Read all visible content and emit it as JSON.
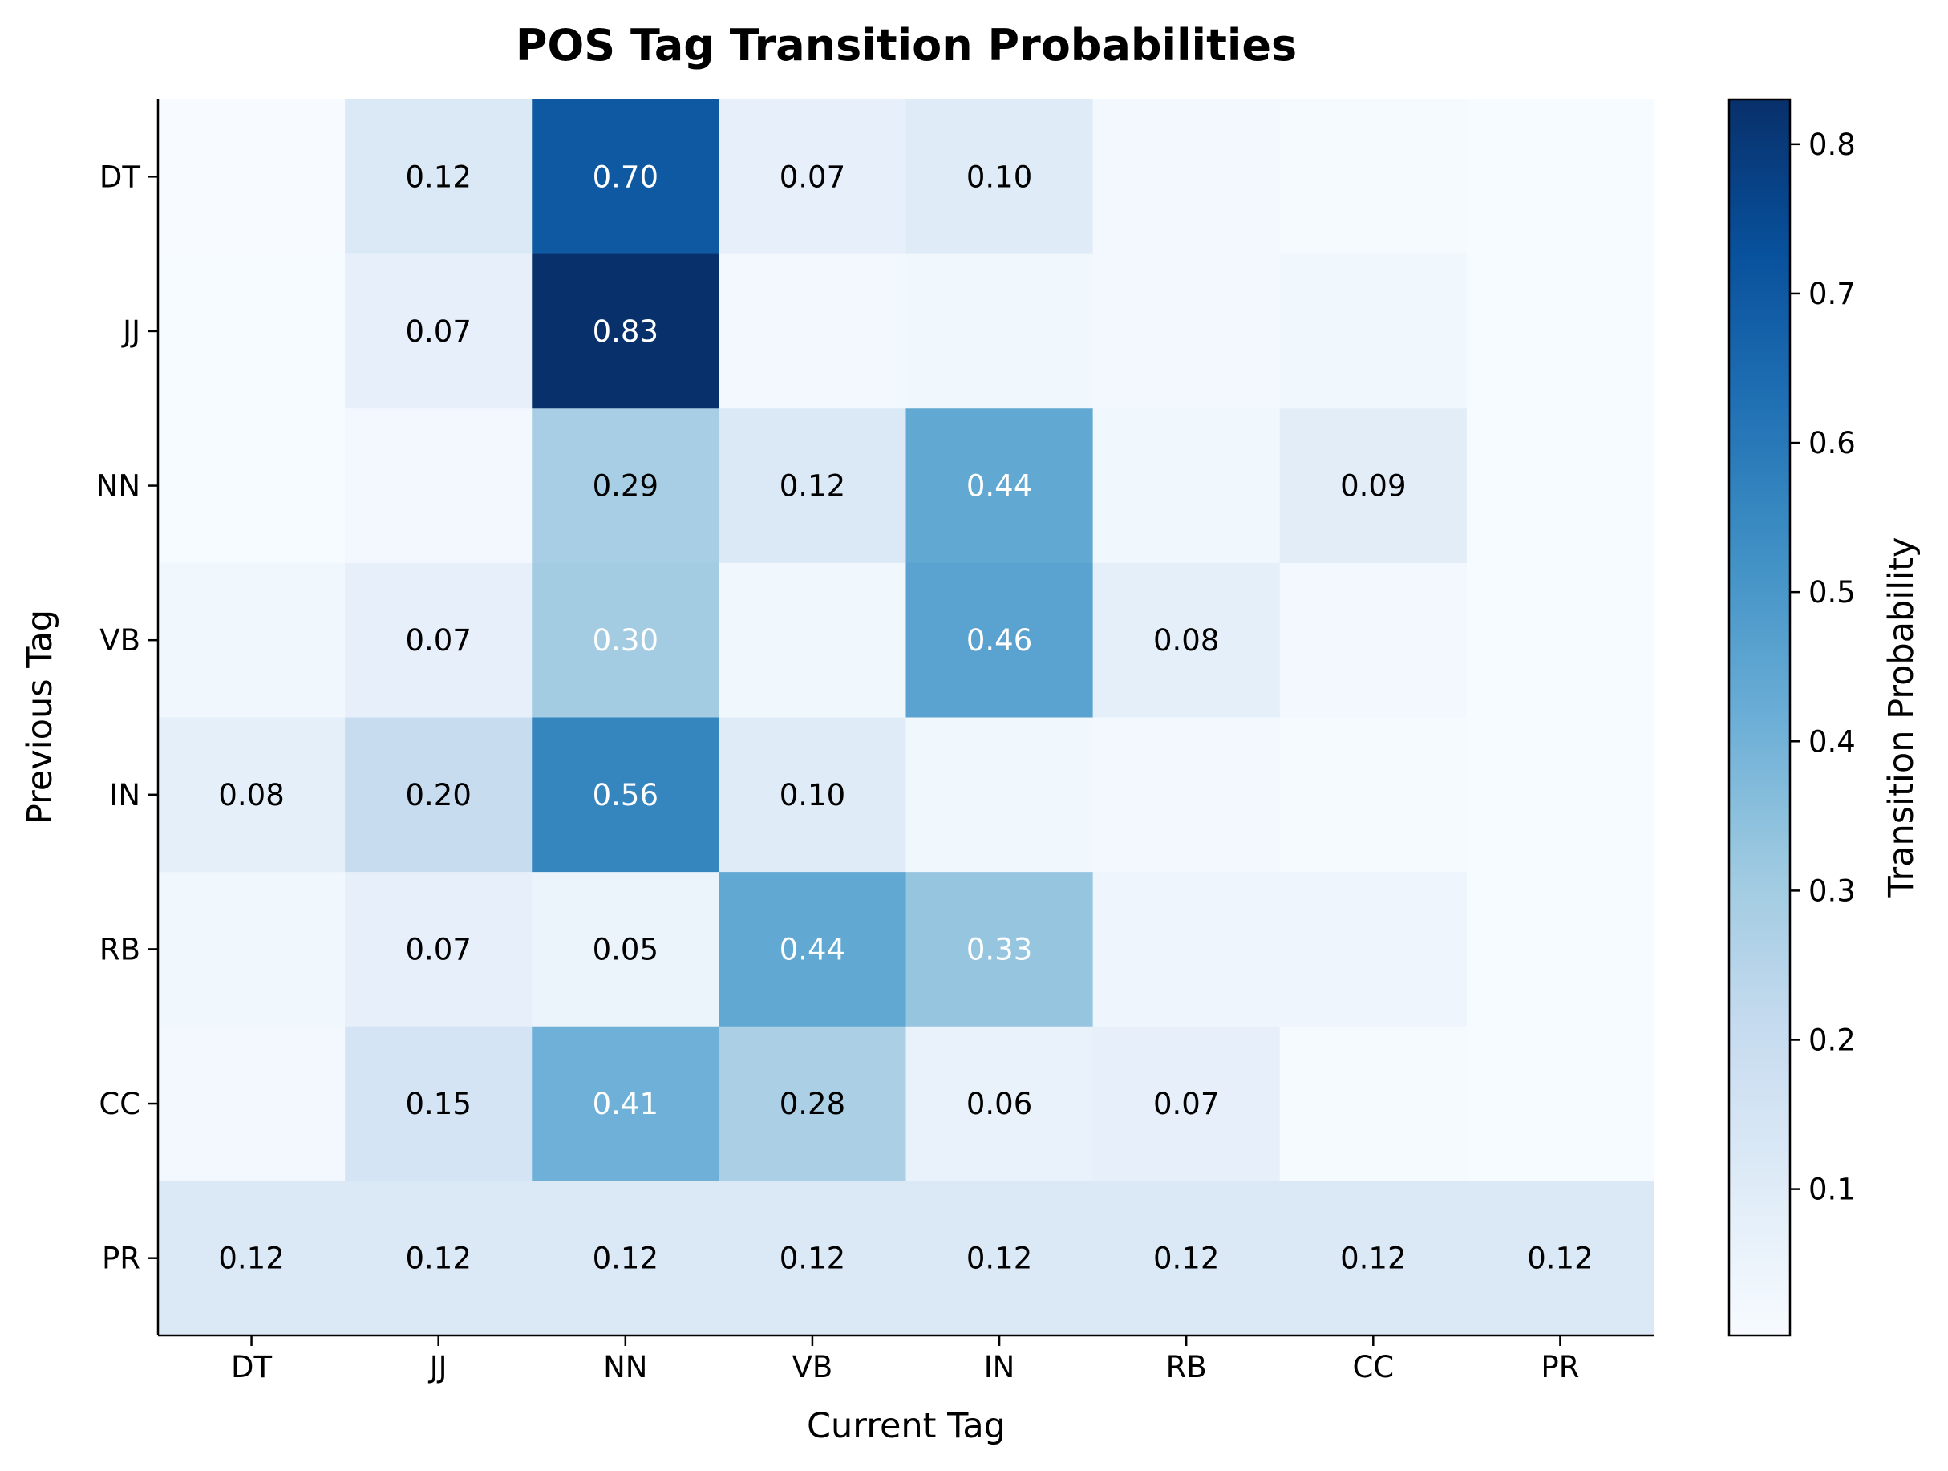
{
  "chart_data": {
    "type": "heatmap",
    "title": "POS Tag Transition Probabilities",
    "xlabel": "Current Tag",
    "ylabel": "Previous Tag",
    "x_categories": [
      "DT",
      "JJ",
      "NN",
      "VB",
      "IN",
      "RB",
      "CC",
      "PR"
    ],
    "y_categories": [
      "DT",
      "JJ",
      "NN",
      "VB",
      "IN",
      "RB",
      "CC",
      "PR"
    ],
    "values": [
      [
        0.003,
        0.12,
        0.7,
        0.07,
        0.1,
        0.02,
        0.01,
        0.005
      ],
      [
        0.005,
        0.07,
        0.83,
        0.02,
        0.03,
        0.02,
        0.03,
        0.005
      ],
      [
        0.005,
        0.02,
        0.29,
        0.12,
        0.44,
        0.03,
        0.09,
        0.005
      ],
      [
        0.03,
        0.07,
        0.3,
        0.03,
        0.46,
        0.08,
        0.02,
        0.005
      ],
      [
        0.08,
        0.2,
        0.56,
        0.1,
        0.03,
        0.02,
        0.01,
        0.005
      ],
      [
        0.03,
        0.07,
        0.05,
        0.44,
        0.33,
        0.04,
        0.04,
        0.005
      ],
      [
        0.02,
        0.15,
        0.41,
        0.28,
        0.06,
        0.07,
        0.01,
        0.005
      ],
      [
        0.12,
        0.12,
        0.12,
        0.12,
        0.12,
        0.12,
        0.12,
        0.12
      ]
    ],
    "annotation_threshold": 0.05,
    "colormap": "Blues",
    "colorbar": {
      "label": "Transition Probability",
      "range": [
        0.002,
        0.83
      ],
      "ticks": [
        0.1,
        0.2,
        0.3,
        0.4,
        0.5,
        0.6,
        0.7,
        0.8
      ],
      "tick_labels": [
        "0.1",
        "0.2",
        "0.3",
        "0.4",
        "0.5",
        "0.6",
        "0.7",
        "0.8"
      ]
    },
    "grid": false
  }
}
